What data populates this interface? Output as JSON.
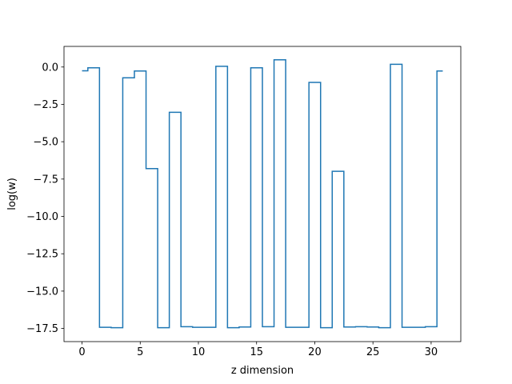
{
  "chart_data": {
    "type": "line",
    "drawstyle": "steps-mid",
    "xlabel": "z dimension",
    "ylabel": "log(w)",
    "xlim": [
      -1.55,
      32.55
    ],
    "ylim": [
      -18.38,
      1.38
    ],
    "xticks": [
      0,
      5,
      10,
      15,
      20,
      25,
      30
    ],
    "xtick_labels": [
      "0",
      "5",
      "10",
      "15",
      "20",
      "25",
      "30"
    ],
    "yticks": [
      0.0,
      -2.5,
      -5.0,
      -7.5,
      -10.0,
      -12.5,
      -15.0,
      -17.5
    ],
    "ytick_labels": [
      "0.0",
      "−2.5",
      "−5.0",
      "−7.5",
      "−10.0",
      "−12.5",
      "−15.0",
      "−17.5"
    ],
    "grid": false,
    "series": [
      {
        "color": "#1f77b4",
        "x": [
          0,
          1,
          2,
          3,
          4,
          5,
          6,
          7,
          8,
          9,
          10,
          11,
          12,
          13,
          14,
          15,
          16,
          17,
          18,
          19,
          20,
          21,
          22,
          23,
          24,
          25,
          26,
          27,
          28,
          29,
          30,
          31
        ],
        "values": [
          -0.25,
          -0.05,
          -17.42,
          -17.45,
          -0.72,
          -0.27,
          -6.8,
          -17.45,
          -3.03,
          -17.38,
          -17.42,
          -17.42,
          0.05,
          -17.45,
          -17.4,
          -0.05,
          -17.38,
          0.48,
          -17.42,
          -17.42,
          -1.03,
          -17.45,
          -6.98,
          -17.4,
          -17.38,
          -17.4,
          -17.45,
          0.18,
          -17.42,
          -17.42,
          -17.38,
          -0.27
        ]
      }
    ]
  }
}
